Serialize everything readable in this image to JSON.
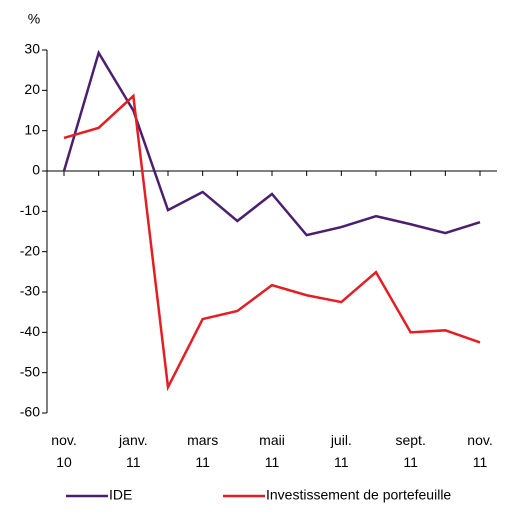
{
  "chart_data": {
    "type": "line",
    "y_unit": "%",
    "categories": [
      "nov.\n10",
      null,
      "janv.\n11",
      null,
      "mars\n11",
      null,
      "maii\n11",
      null,
      "juil.\n11",
      null,
      "sept.\n11",
      null,
      "nov.\n11"
    ],
    "series": [
      {
        "name": "IDE",
        "color": "#4b1f6f",
        "values": [
          0,
          29.3,
          15,
          -9.7,
          -5.2,
          -12.4,
          -5.7,
          -15.9,
          -13.9,
          -11.2,
          -13.2,
          -15.4,
          -12.7
        ]
      },
      {
        "name": "Investissement de portefeuille",
        "color": "#e31e24",
        "values": [
          8.2,
          10.7,
          18.6,
          -53.6,
          -36.7,
          -34.7,
          -28.3,
          -30.8,
          -32.5,
          -25.1,
          -40,
          -39.5,
          -42.5
        ]
      }
    ],
    "ylim": [
      -60,
      30
    ],
    "yticks": [
      -60,
      -50,
      -40,
      -30,
      -20,
      -10,
      0,
      10,
      20,
      30
    ],
    "legend": "bottom"
  }
}
